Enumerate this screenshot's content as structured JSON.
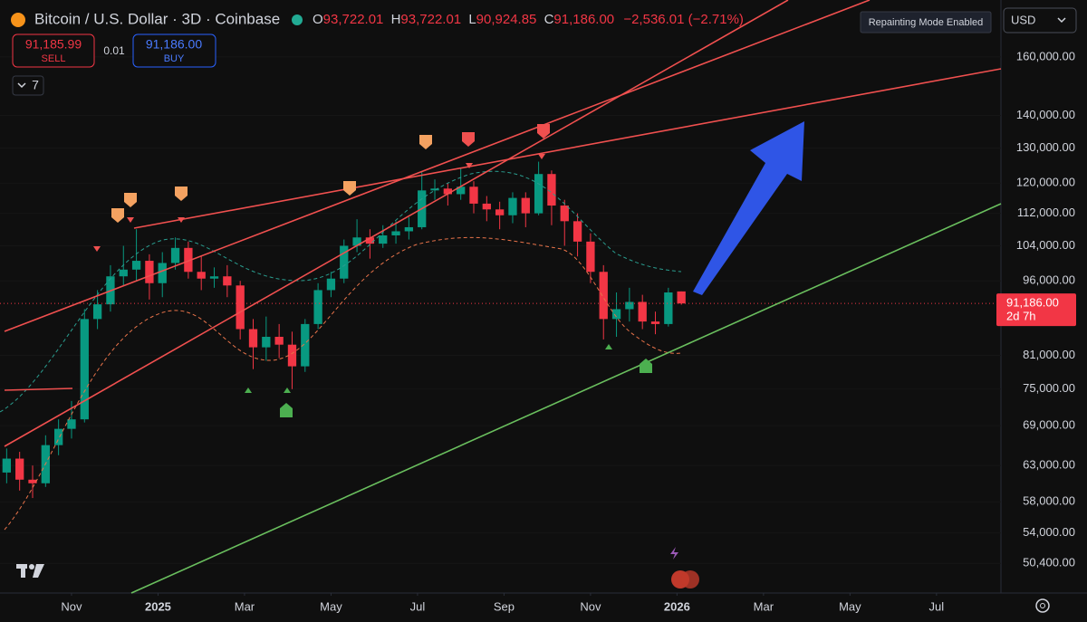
{
  "header": {
    "symbol": "Bitcoin / U.S. Dollar · 3D · Coinbase",
    "o_label": "O",
    "o_value": "93,722.01",
    "h_label": "H",
    "h_value": "93,722.01",
    "l_label": "L",
    "l_value": "90,924.85",
    "c_label": "C",
    "c_value": "91,186.00",
    "change": "−2,536.01 (−2.71%)",
    "sell_price": "91,185.99",
    "sell": "SELL",
    "spread": "0.01",
    "buy_price": "91,186.00",
    "buy": "BUY",
    "indicators_count": "7",
    "badge": "Repainting Mode Enabled",
    "currency": "USD"
  },
  "chart_data": {
    "type": "candlestick",
    "log_scale": true,
    "up_color": "#089981",
    "down_color": "#f23645",
    "xlim": [
      -1.654,
      21.49
    ],
    "xticks": [
      {
        "value": 0,
        "label": "Nov"
      },
      {
        "value": 2,
        "label": "2025"
      },
      {
        "value": 4,
        "label": "Mar"
      },
      {
        "value": 6,
        "label": "May"
      },
      {
        "value": 8,
        "label": "Jul"
      },
      {
        "value": 10,
        "label": "Sep"
      },
      {
        "value": 12,
        "label": "Nov"
      },
      {
        "value": 14,
        "label": "2026"
      },
      {
        "value": 16,
        "label": "Mar"
      },
      {
        "value": 18,
        "label": "May"
      },
      {
        "value": 20,
        "label": "Jul"
      }
    ],
    "ylim": [
      47100,
      182200
    ],
    "yticks": [
      {
        "value": 160000,
        "label": "160,000.00"
      },
      {
        "value": 140000,
        "label": "140,000.00"
      },
      {
        "value": 130000,
        "label": "130,000.00"
      },
      {
        "value": 120000,
        "label": "120,000.00"
      },
      {
        "value": 112000,
        "label": "112,000.00"
      },
      {
        "value": 104000,
        "label": "104,000.00"
      },
      {
        "value": 96000,
        "label": "96,000.00"
      },
      {
        "value": 81000,
        "label": "81,000.00"
      },
      {
        "value": 75000,
        "label": "75,000.00"
      },
      {
        "value": 69000,
        "label": "69,000.00"
      },
      {
        "value": 63000,
        "label": "63,000.00"
      },
      {
        "value": 58000,
        "label": "58,000.00"
      },
      {
        "value": 54000,
        "label": "54,000.00"
      },
      {
        "value": 50400,
        "label": "50,400.00"
      }
    ],
    "last_price": {
      "value": 91186,
      "label": "91,186.00"
    },
    "countdown": "2d 7h",
    "x": [
      -1.5,
      -1.2,
      -0.9,
      -0.6,
      -0.3,
      0,
      0.3,
      0.6,
      0.9,
      1.2,
      1.5,
      1.8,
      2.1,
      2.4,
      2.7,
      3.0,
      3.3,
      3.6,
      3.9,
      4.2,
      4.5,
      4.8,
      5.1,
      5.4,
      5.7,
      6.0,
      6.3,
      6.6,
      6.9,
      7.2,
      7.5,
      7.8,
      8.1,
      8.4,
      8.7,
      9.0,
      9.3,
      9.6,
      9.9,
      10.2,
      10.5,
      10.8,
      11.1,
      11.4,
      11.7,
      12.0,
      12.3,
      12.6,
      12.9,
      13.2,
      13.5,
      13.8,
      14.1
    ],
    "open": [
      62000,
      64000,
      61000,
      60500,
      66000,
      68500,
      70000,
      88000,
      91000,
      97000,
      98500,
      100500,
      95500,
      100000,
      103500,
      98000,
      96500,
      97000,
      95000,
      86000,
      82500,
      84500,
      83000,
      79000,
      87000,
      94000,
      96500,
      104000,
      106000,
      104500,
      106500,
      107500,
      108500,
      118000,
      118500,
      117000,
      119000,
      114500,
      113000,
      111500,
      116000,
      112000,
      122500,
      114000,
      110000,
      105000,
      98000,
      88000,
      90000,
      91500,
      87500,
      87000,
      93722.01
    ],
    "high": [
      65500,
      65000,
      63000,
      67500,
      70000,
      73000,
      90000,
      94000,
      99500,
      104000,
      108000,
      102000,
      102500,
      106000,
      105000,
      101500,
      99000,
      99500,
      96000,
      88000,
      88500,
      87000,
      85500,
      88000,
      95500,
      98000,
      105500,
      110500,
      108000,
      109000,
      110000,
      111000,
      123000,
      121000,
      120000,
      124000,
      120500,
      116500,
      115000,
      117500,
      117500,
      126000,
      123500,
      115500,
      112000,
      107000,
      99500,
      93500,
      94500,
      93000,
      89500,
      94500,
      93722.01
    ],
    "low": [
      60500,
      59500,
      58500,
      60000,
      64500,
      67000,
      69500,
      86000,
      89500,
      95000,
      96000,
      92000,
      92500,
      98500,
      96500,
      94000,
      94500,
      92500,
      84000,
      78500,
      80000,
      80500,
      75000,
      78000,
      86000,
      92500,
      95500,
      102500,
      101000,
      103500,
      104500,
      105500,
      108000,
      115500,
      114000,
      115500,
      112000,
      110000,
      108000,
      109500,
      108500,
      111500,
      109000,
      104000,
      101500,
      95500,
      84000,
      84500,
      87500,
      86000,
      85000,
      86500,
      90924.85
    ],
    "close": [
      64000,
      61000,
      60500,
      66000,
      68500,
      70000,
      88000,
      91000,
      97000,
      98500,
      100500,
      95500,
      100000,
      103500,
      98000,
      96500,
      97000,
      95000,
      86000,
      82500,
      84500,
      83000,
      79000,
      87000,
      94000,
      96500,
      104000,
      106000,
      104500,
      106500,
      107500,
      108500,
      118000,
      118500,
      117000,
      119000,
      114500,
      113000,
      111500,
      116000,
      112000,
      122500,
      114000,
      110000,
      105000,
      98000,
      88000,
      90000,
      91500,
      87500,
      87000,
      93500,
      91186
    ]
  }
}
